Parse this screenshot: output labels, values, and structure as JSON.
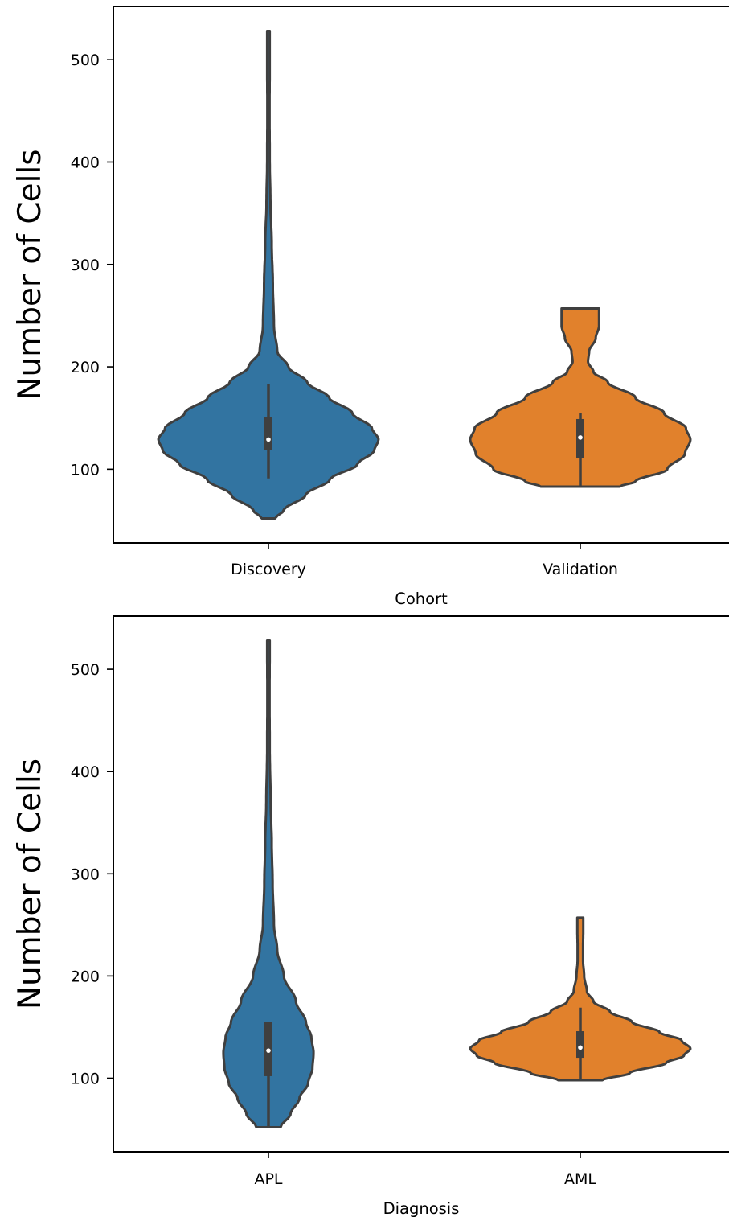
{
  "chart_data": [
    {
      "type": "violin",
      "xlabel": "Cohort",
      "ylabel": "Number of Cells",
      "ylim": [
        28,
        552
      ],
      "yticks": [
        100,
        200,
        300,
        400,
        500
      ],
      "categories": [
        "Discovery",
        "Validation"
      ],
      "grid": false,
      "violins": [
        {
          "category": "Discovery",
          "color": "#3274a1",
          "min": 52,
          "max": 528,
          "q1": 119,
          "median": 129,
          "q3": 151,
          "whisker_low": 91,
          "whisker_high": 183,
          "density": [
            [
              52,
              0.06
            ],
            [
              60,
              0.14
            ],
            [
              75,
              0.34
            ],
            [
              90,
              0.56
            ],
            [
              105,
              0.81
            ],
            [
              118,
              0.96
            ],
            [
              129,
              1.0
            ],
            [
              140,
              0.94
            ],
            [
              155,
              0.76
            ],
            [
              170,
              0.55
            ],
            [
              185,
              0.35
            ],
            [
              200,
              0.18
            ],
            [
              215,
              0.08
            ],
            [
              240,
              0.05
            ],
            [
              280,
              0.04
            ],
            [
              320,
              0.03
            ],
            [
              360,
              0.018
            ],
            [
              400,
              0.012
            ],
            [
              450,
              0.01
            ],
            [
              500,
              0.012
            ],
            [
              528,
              0.012
            ]
          ]
        },
        {
          "category": "Validation",
          "color": "#e1812c",
          "min": 83,
          "max": 257,
          "q1": 111,
          "median": 131,
          "q3": 149,
          "whisker_low": 83,
          "whisker_high": 155,
          "density": [
            [
              83,
              0.36
            ],
            [
              88,
              0.5
            ],
            [
              100,
              0.79
            ],
            [
              115,
              0.95
            ],
            [
              129,
              1.0
            ],
            [
              140,
              0.96
            ],
            [
              155,
              0.76
            ],
            [
              170,
              0.5
            ],
            [
              185,
              0.25
            ],
            [
              195,
              0.12
            ],
            [
              205,
              0.07
            ],
            [
              215,
              0.08
            ],
            [
              228,
              0.14
            ],
            [
              240,
              0.17
            ],
            [
              250,
              0.17
            ],
            [
              257,
              0.17
            ]
          ]
        }
      ]
    },
    {
      "type": "violin",
      "xlabel": "Diagnosis",
      "ylabel": "Number of Cells",
      "ylim": [
        28,
        552
      ],
      "yticks": [
        100,
        200,
        300,
        400,
        500
      ],
      "categories": [
        "APL",
        "AML"
      ],
      "grid": false,
      "violins": [
        {
          "category": "APL",
          "color": "#3274a1",
          "min": 52,
          "max": 528,
          "q1": 102,
          "median": 127,
          "q3": 155,
          "whisker_low": 52,
          "whisker_high": 155,
          "density": [
            [
              52,
              0.11
            ],
            [
              65,
              0.2
            ],
            [
              80,
              0.28
            ],
            [
              95,
              0.36
            ],
            [
              110,
              0.4
            ],
            [
              125,
              0.41
            ],
            [
              140,
              0.39
            ],
            [
              155,
              0.34
            ],
            [
              175,
              0.25
            ],
            [
              200,
              0.14
            ],
            [
              225,
              0.08
            ],
            [
              250,
              0.05
            ],
            [
              290,
              0.038
            ],
            [
              330,
              0.03
            ],
            [
              370,
              0.02
            ],
            [
              420,
              0.012
            ],
            [
              470,
              0.01
            ],
            [
              528,
              0.012
            ]
          ]
        },
        {
          "category": "AML",
          "color": "#e1812c",
          "min": 98,
          "max": 257,
          "q1": 120,
          "median": 130,
          "q3": 146,
          "whisker_low": 98,
          "whisker_high": 169,
          "density": [
            [
              98,
              0.2
            ],
            [
              105,
              0.45
            ],
            [
              115,
              0.78
            ],
            [
              122,
              0.94
            ],
            [
              129,
              1.0
            ],
            [
              137,
              0.92
            ],
            [
              145,
              0.72
            ],
            [
              155,
              0.47
            ],
            [
              165,
              0.27
            ],
            [
              175,
              0.12
            ],
            [
              185,
              0.06
            ],
            [
              200,
              0.035
            ],
            [
              215,
              0.025
            ],
            [
              230,
              0.025
            ],
            [
              245,
              0.027
            ],
            [
              257,
              0.027
            ]
          ]
        }
      ]
    }
  ]
}
